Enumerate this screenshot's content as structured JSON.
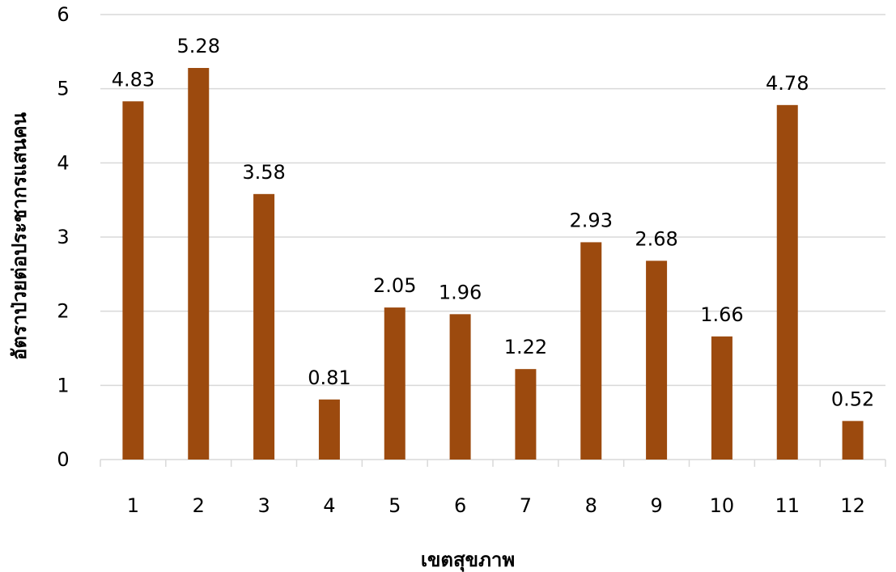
{
  "chart_data": {
    "type": "bar",
    "title": "",
    "xlabel": "เขตสุขภาพ",
    "ylabel": "อัตราป่วยต่อประชากรแสนคน",
    "categories": [
      "1",
      "2",
      "3",
      "4",
      "5",
      "6",
      "7",
      "8",
      "9",
      "10",
      "11",
      "12"
    ],
    "values": [
      4.83,
      5.28,
      3.58,
      0.81,
      2.05,
      1.96,
      1.22,
      2.93,
      2.68,
      1.66,
      4.78,
      0.52
    ],
    "data_labels": [
      "4.83",
      "5.28",
      "3.58",
      "0.81",
      "2.05",
      "1.96",
      "1.22",
      "2.93",
      "2.68",
      "1.66",
      "4.78",
      "0.52"
    ],
    "yticks": [
      "0",
      "1",
      "2",
      "3",
      "4",
      "5",
      "6"
    ],
    "ylim": [
      0,
      6
    ],
    "grid": "horizontal",
    "legend": "none",
    "bar_color": "#9C4A0E",
    "grid_color": "#D9D9D9"
  }
}
